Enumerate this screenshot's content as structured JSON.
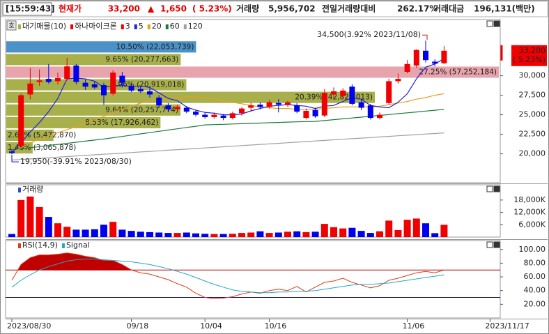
{
  "header": {
    "time": "[15:59:43]",
    "price_label": "현재가",
    "price": "33,200",
    "arrow": "▲",
    "change": "1,650",
    "change_pct": "( 5.23%)",
    "volume_label": "거래량",
    "volume": "5,956,702",
    "ratio_label": "전일거래량대비",
    "ratio": "262.17%",
    "amount_label": "거래대금",
    "amount": "196,131(백만)"
  },
  "button": "호",
  "chart_data": [
    {
      "type": "candlestick",
      "legend_title": "대기매물(10)",
      "name": "하나마이크론",
      "period": "3",
      "categories": [
        "2023/08/30",
        null,
        null,
        null,
        null,
        null,
        null,
        null,
        null,
        null,
        null,
        null,
        null,
        "09/18",
        null,
        null,
        null,
        null,
        null,
        null,
        null,
        "10/04",
        null,
        null,
        null,
        null,
        null,
        null,
        "10/16",
        null,
        null,
        null,
        null,
        null,
        null,
        null,
        null,
        null,
        null,
        null,
        null,
        null,
        null,
        "11/06",
        null,
        null,
        null,
        null,
        null,
        null,
        null,
        null,
        "2023/11/17"
      ],
      "open": [
        20300,
        21000,
        27600,
        29200,
        29600,
        29300,
        29600,
        31300,
        29100,
        28900,
        28800,
        27700,
        30000,
        28700,
        28300,
        28000,
        27200,
        26200,
        25700,
        25900,
        25400,
        25000,
        24700,
        24900,
        24600,
        25200,
        25900,
        26300,
        26000,
        26500,
        26300,
        26200,
        24600,
        25600,
        24900,
        27600,
        27400,
        28600,
        26600,
        26200,
        24600,
        26500,
        29300,
        30500,
        31300,
        33200,
        31800,
        31600,
        null,
        null,
        null,
        null,
        null
      ],
      "high": [
        20500,
        27700,
        31000,
        30800,
        31500,
        30400,
        32300,
        31500,
        29500,
        29300,
        29100,
        30700,
        30500,
        29000,
        28700,
        28400,
        27500,
        26500,
        26300,
        26100,
        25600,
        25300,
        25300,
        25100,
        25400,
        26000,
        26500,
        26600,
        26900,
        27000,
        26800,
        26500,
        25800,
        25900,
        28300,
        28500,
        28400,
        28900,
        27000,
        26400,
        25300,
        29600,
        30300,
        32000,
        33400,
        34500,
        32100,
        33800,
        null,
        null,
        null,
        null,
        null
      ],
      "low": [
        19950,
        20800,
        27000,
        28700,
        29000,
        28900,
        29400,
        28900,
        28200,
        28300,
        26300,
        27500,
        28500,
        27900,
        27800,
        27200,
        25900,
        25500,
        25500,
        25200,
        24800,
        24500,
        24500,
        24300,
        24400,
        24900,
        25400,
        25700,
        25800,
        25300,
        26000,
        25200,
        24400,
        24600,
        24700,
        27200,
        27000,
        26200,
        25600,
        24400,
        24400,
        26300,
        29000,
        30300,
        31000,
        31700,
        31200,
        31500,
        null,
        null,
        null,
        null,
        null
      ],
      "close": [
        20100,
        27500,
        29000,
        29400,
        29200,
        29700,
        31200,
        29200,
        28600,
        28500,
        27500,
        30400,
        29100,
        28100,
        28000,
        27600,
        26200,
        25700,
        26000,
        25400,
        25000,
        24700,
        25000,
        24600,
        25200,
        25800,
        26200,
        26000,
        26600,
        26300,
        26600,
        25400,
        25500,
        24800,
        27800,
        28000,
        28100,
        26400,
        25900,
        24600,
        25000,
        29300,
        29600,
        31500,
        33300,
        32000,
        31550,
        33200,
        null,
        null,
        null,
        null,
        null
      ],
      "up_color": "#f00000",
      "down_color": "#0000f0",
      "series": [
        {
          "name": "5",
          "color": "#2020e0",
          "values": [
            20100,
            21400,
            22800,
            24000,
            25400,
            27100,
            29600,
            29700,
            29600,
            29300,
            28500,
            28700,
            28800,
            28600,
            28700,
            28500,
            27800,
            27100,
            26800,
            26000,
            25600,
            25300,
            25200,
            25000,
            25000,
            25100,
            25500,
            25800,
            26100,
            26200,
            26300,
            26200,
            26100,
            25800,
            26100,
            26200,
            26700,
            27200,
            27000,
            26200,
            26000,
            25900,
            26600,
            27700,
            29600,
            31100,
            31500,
            32200,
            null,
            null,
            null,
            null,
            null
          ]
        },
        {
          "name": "20",
          "color": "#e8a020",
          "values": [
            20100,
            20800,
            21400,
            21900,
            22300,
            22700,
            23100,
            23500,
            23900,
            24400,
            24800,
            25300,
            25700,
            26100,
            26500,
            26800,
            27000,
            27100,
            27200,
            27300,
            27300,
            27200,
            27000,
            26800,
            26600,
            26400,
            26200,
            26000,
            25900,
            25800,
            25800,
            25700,
            25700,
            25700,
            25800,
            25900,
            26000,
            26000,
            26000,
            26000,
            26100,
            26300,
            26500,
            26700,
            27000,
            27200,
            27500,
            27700,
            null,
            null,
            null,
            null,
            null
          ]
        },
        {
          "name": "60",
          "color": "#1e7a3c",
          "values": [
            20500,
            20640,
            20780,
            20920,
            21060,
            21200,
            21340,
            21480,
            21620,
            21760,
            21900,
            22060,
            22220,
            22390,
            22550,
            22710,
            22880,
            23040,
            23200,
            23370,
            23530,
            23700,
            23740,
            23780,
            23820,
            23860,
            23900,
            23940,
            23980,
            24020,
            24060,
            24100,
            24130,
            24150,
            24260,
            24370,
            24480,
            24590,
            24700,
            24810,
            24920,
            25030,
            25140,
            25250,
            25360,
            25470,
            25580,
            25700,
            null,
            null,
            null,
            null,
            null
          ]
        },
        {
          "name": "120",
          "color": "#a0a0a0",
          "values": [
            19200,
            19270,
            19350,
            19420,
            19500,
            19570,
            19640,
            19720,
            19790,
            19870,
            19940,
            20010,
            20090,
            20160,
            20240,
            20310,
            20380,
            20460,
            20530,
            20600,
            20680,
            20750,
            20830,
            20900,
            20970,
            21050,
            21120,
            21200,
            21270,
            21340,
            21420,
            21490,
            21570,
            21640,
            21710,
            21790,
            21860,
            21940,
            22010,
            22080,
            22160,
            22230,
            22310,
            22380,
            22450,
            22530,
            22600,
            22680,
            null,
            null,
            null,
            null,
            null
          ]
        }
      ],
      "ylim": [
        16300,
        37200
      ],
      "yticks": [
        {
          "value": 20000,
          "label": "20,000"
        },
        {
          "value": 22500,
          "label": "22,500"
        },
        {
          "value": 25000,
          "label": "25,000"
        },
        {
          "value": 27500,
          "label": "27,500"
        },
        {
          "value": 30000,
          "label": "30,000"
        }
      ],
      "volume_profile": {
        "bins": [
          19950,
          21567,
          23183,
          24800,
          26417,
          28033,
          29650,
          31267,
          32883,
          34500
        ],
        "values": [
          1.46,
          2.61,
          8.53,
          9.64,
          20.39,
          9.96,
          27.25,
          9.65,
          10.5
        ],
        "value_labels": [
          "1.46% (3,065,878)",
          "2.61% (5,472,870)",
          "8.53% (17,926,462)",
          "9.64% (20,257,774)",
          "20.39% (42,828,013)",
          "9.96% (20,919,018)",
          "27.25% (57,252,184)",
          "9.65% (20,277,663)",
          "10.50% (22,053,739)"
        ],
        "colors": [
          "#a8b04c",
          "#a8b04c",
          "#a8b04c",
          "#a8b04c",
          "#a8b04c",
          "#a8b04c",
          "#e8a4ac",
          "#a8b04c",
          "#4a92c8"
        ]
      },
      "annotations": [
        {
          "text": "34,500(3.92% 2023/11/08)",
          "index": 45,
          "value": 34500,
          "color": "#d01010"
        },
        {
          "text": "19,950(-39.91% 2023/08/30)",
          "index": 0,
          "value": 19950,
          "color": "#1010b0"
        }
      ],
      "current_price": {
        "value": 33200,
        "label": "33,200",
        "change_label": "( 5.23%)",
        "color": "#f00000"
      }
    },
    {
      "type": "bar",
      "title": "거래량",
      "title_color": "#3050c0",
      "values": [
        1500,
        18000,
        19700,
        14600,
        9800,
        6700,
        5000,
        3600,
        3600,
        3800,
        6000,
        7400,
        3600,
        3000,
        2600,
        2400,
        2200,
        2000,
        2000,
        2200,
        1800,
        1600,
        1500,
        1500,
        1600,
        2000,
        2200,
        2800,
        2000,
        2200,
        2600,
        2800,
        2400,
        2600,
        6400,
        4800,
        4200,
        4500,
        3000,
        2000,
        2800,
        8000,
        3400,
        8400,
        9000,
        6700,
        1900,
        5957,
        null,
        null,
        null,
        null,
        null
      ],
      "ylim": [
        0,
        25400
      ],
      "yticks": [
        {
          "value": 6000,
          "label": "6,000K"
        },
        {
          "value": 12000,
          "label": "12,000K"
        },
        {
          "value": 18000,
          "label": "18,000K"
        }
      ]
    },
    {
      "type": "line",
      "series": [
        {
          "name": "RSI(14,9)",
          "color": "#e03818",
          "values": [
            55,
            78,
            88,
            92,
            92,
            93,
            95,
            93,
            90,
            88,
            84,
            84,
            78,
            70,
            66,
            64,
            60,
            56,
            50,
            45,
            36,
            30,
            28,
            29,
            31,
            35,
            38,
            36,
            40,
            42,
            40,
            46,
            38,
            45,
            52,
            54,
            58,
            52,
            48,
            44,
            47,
            55,
            58,
            62,
            66,
            68,
            66,
            70,
            null,
            null,
            null,
            null,
            null
          ]
        },
        {
          "name": "Signal",
          "color": "#20a8c8",
          "values": [
            45,
            55,
            63,
            70,
            75,
            79,
            83,
            85,
            86,
            86,
            85,
            84,
            83,
            82,
            80,
            78,
            75,
            72,
            68,
            64,
            59,
            54,
            49,
            45,
            41,
            39,
            38,
            37,
            37,
            38,
            38,
            39,
            39,
            40,
            42,
            44,
            46,
            48,
            49,
            49,
            50,
            51,
            53,
            55,
            57,
            59,
            61,
            63,
            null,
            null,
            null,
            null,
            null
          ]
        }
      ],
      "ylim": [
        0,
        113
      ],
      "yticks": [
        {
          "value": 20,
          "label": "20.00"
        },
        {
          "value": 40,
          "label": "40.00"
        },
        {
          "value": 60,
          "label": "60.00"
        },
        {
          "value": 80,
          "label": "80.00"
        },
        {
          "value": 100,
          "label": "100.00"
        }
      ],
      "reference_lines": [
        {
          "value": 70,
          "color": "#b00000"
        },
        {
          "value": 30,
          "color": "#000080"
        }
      ],
      "fill_above": 70,
      "fill_color": "#c00000"
    }
  ]
}
